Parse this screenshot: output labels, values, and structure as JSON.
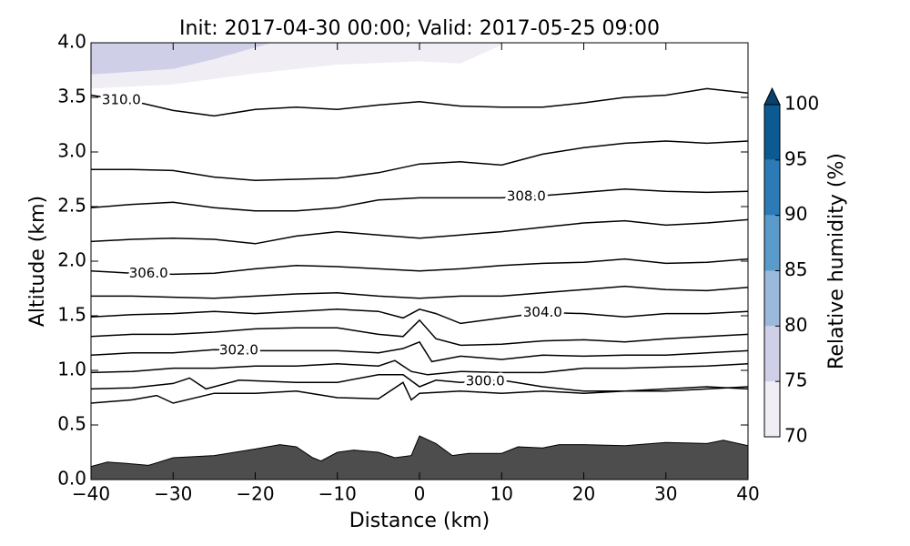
{
  "chart_data": {
    "type": "contour",
    "title": "Init: 2017-04-30 00:00; Valid: 2017-05-25 09:00",
    "xlabel": "Distance (km)",
    "ylabel": "Altitude (km)",
    "xlim": [
      -40,
      40
    ],
    "ylim": [
      0,
      4
    ],
    "xticks": [
      {
        "value": -40,
        "label": "−40"
      },
      {
        "value": -30,
        "label": "−30"
      },
      {
        "value": -20,
        "label": "−20"
      },
      {
        "value": -10,
        "label": "−10"
      },
      0,
      10,
      20,
      30,
      40
    ],
    "yticks": [
      {
        "value": 0,
        "label": "0.0"
      },
      0.5,
      {
        "value": 1,
        "label": "1.0"
      },
      1.5,
      {
        "value": 2,
        "label": "2.0"
      },
      2.5,
      {
        "value": 3,
        "label": "3.0"
      },
      3.5,
      {
        "value": 4,
        "label": "4.0"
      }
    ],
    "contour_color": "#000000",
    "contours": [
      {
        "level": 299,
        "x": [
          -40,
          -35,
          -32,
          -30,
          -25,
          -20,
          -15,
          -10,
          -5,
          -2,
          -1,
          0,
          5,
          10,
          15,
          20,
          25,
          30,
          35,
          40
        ],
        "y": [
          0.7,
          0.73,
          0.77,
          0.7,
          0.79,
          0.79,
          0.81,
          0.75,
          0.74,
          0.89,
          0.73,
          0.79,
          0.81,
          0.79,
          0.81,
          0.79,
          0.81,
          0.81,
          0.83,
          0.85
        ]
      },
      {
        "level": 300,
        "label": "300.0",
        "x": [
          -40,
          -35,
          -30,
          -28,
          -26,
          -22,
          -15,
          -10,
          -5,
          -2,
          0,
          2,
          5,
          10,
          15,
          20,
          25,
          30,
          35,
          40
        ],
        "y": [
          0.83,
          0.84,
          0.88,
          0.93,
          0.83,
          0.91,
          0.89,
          0.89,
          0.96,
          0.96,
          0.85,
          0.91,
          0.89,
          0.91,
          0.85,
          0.81,
          0.81,
          0.83,
          0.85,
          0.83
        ]
      },
      {
        "level": 301,
        "x": [
          -40,
          -35,
          -30,
          -25,
          -20,
          -15,
          -10,
          -5,
          -3,
          -1,
          1,
          5,
          10,
          15,
          20,
          25,
          30,
          35,
          40
        ],
        "y": [
          0.98,
          0.99,
          1.02,
          1.02,
          1.04,
          1.04,
          1.06,
          1.04,
          1.09,
          0.99,
          0.96,
          0.99,
          0.98,
          0.98,
          1.02,
          1.02,
          1.03,
          1.04,
          1.06
        ]
      },
      {
        "level": 302,
        "label": "302.0",
        "x": [
          -40,
          -35,
          -30,
          -25,
          -20,
          -15,
          -10,
          -5,
          -2,
          0,
          1.5,
          5,
          10,
          15,
          20,
          25,
          30,
          35,
          40
        ],
        "y": [
          1.14,
          1.16,
          1.16,
          1.19,
          1.18,
          1.18,
          1.18,
          1.16,
          1.2,
          1.26,
          1.08,
          1.13,
          1.1,
          1.14,
          1.13,
          1.14,
          1.14,
          1.16,
          1.18
        ]
      },
      {
        "level": 303,
        "x": [
          -40,
          -35,
          -30,
          -25,
          -20,
          -15,
          -10,
          -5,
          -2,
          0,
          2,
          5,
          10,
          15,
          20,
          25,
          30,
          35,
          40
        ],
        "y": [
          1.31,
          1.33,
          1.33,
          1.35,
          1.38,
          1.39,
          1.39,
          1.33,
          1.31,
          1.46,
          1.29,
          1.23,
          1.24,
          1.27,
          1.28,
          1.26,
          1.29,
          1.31,
          1.33
        ]
      },
      {
        "level": 304,
        "label": "304.0",
        "x": [
          -40,
          -35,
          -30,
          -25,
          -20,
          -15,
          -10,
          -5,
          -2,
          0,
          2,
          5,
          10,
          15,
          20,
          25,
          30,
          35,
          40
        ],
        "y": [
          1.49,
          1.51,
          1.52,
          1.54,
          1.52,
          1.54,
          1.56,
          1.54,
          1.48,
          1.56,
          1.52,
          1.43,
          1.48,
          1.53,
          1.52,
          1.49,
          1.52,
          1.52,
          1.54
        ]
      },
      {
        "level": 305,
        "x": [
          -40,
          -35,
          -30,
          -25,
          -20,
          -15,
          -10,
          -5,
          0,
          5,
          10,
          15,
          20,
          25,
          30,
          35,
          40
        ],
        "y": [
          1.68,
          1.68,
          1.67,
          1.66,
          1.68,
          1.7,
          1.71,
          1.68,
          1.66,
          1.68,
          1.68,
          1.71,
          1.74,
          1.77,
          1.74,
          1.73,
          1.76
        ]
      },
      {
        "level": 306,
        "label": "306.0",
        "x": [
          -40,
          -35,
          -30,
          -25,
          -20,
          -15,
          -10,
          -5,
          0,
          5,
          10,
          15,
          20,
          25,
          30,
          35,
          40
        ],
        "y": [
          1.91,
          1.89,
          1.88,
          1.89,
          1.93,
          1.96,
          1.95,
          1.93,
          1.91,
          1.93,
          1.96,
          1.98,
          1.99,
          2.02,
          1.98,
          1.99,
          2.02
        ]
      },
      {
        "level": 307,
        "x": [
          -40,
          -35,
          -30,
          -25,
          -20,
          -15,
          -10,
          -5,
          0,
          5,
          10,
          15,
          20,
          25,
          30,
          35,
          40
        ],
        "y": [
          2.18,
          2.2,
          2.21,
          2.2,
          2.16,
          2.23,
          2.27,
          2.24,
          2.21,
          2.24,
          2.27,
          2.31,
          2.35,
          2.37,
          2.33,
          2.35,
          2.38
        ]
      },
      {
        "level": 308,
        "label": "308.0",
        "x": [
          -40,
          -35,
          -30,
          -25,
          -20,
          -15,
          -10,
          -5,
          0,
          5,
          10,
          15,
          20,
          25,
          30,
          35,
          40
        ],
        "y": [
          2.49,
          2.52,
          2.54,
          2.49,
          2.46,
          2.46,
          2.49,
          2.56,
          2.58,
          2.58,
          2.58,
          2.6,
          2.63,
          2.66,
          2.64,
          2.63,
          2.64
        ]
      },
      {
        "level": 309,
        "x": [
          -40,
          -35,
          -30,
          -25,
          -20,
          -15,
          -10,
          -5,
          0,
          5,
          10,
          15,
          20,
          25,
          30,
          35,
          40
        ],
        "y": [
          2.84,
          2.84,
          2.83,
          2.77,
          2.74,
          2.75,
          2.76,
          2.81,
          2.89,
          2.91,
          2.88,
          2.98,
          3.04,
          3.08,
          3.1,
          3.08,
          3.1
        ]
      },
      {
        "level": 310,
        "label": "310.0",
        "x": [
          -40,
          -34,
          -30,
          -25,
          -20,
          -15,
          -10,
          -5,
          0,
          5,
          10,
          15,
          20,
          25,
          30,
          35,
          40
        ],
        "y": [
          3.52,
          3.45,
          3.38,
          3.33,
          3.39,
          3.41,
          3.39,
          3.43,
          3.46,
          3.42,
          3.41,
          3.41,
          3.45,
          3.5,
          3.52,
          3.58,
          3.54
        ]
      }
    ],
    "terrain": {
      "color": "#4d4d4d",
      "x": [
        -40,
        -38,
        -36,
        -33,
        -30,
        -25,
        -20,
        -17,
        -15,
        -13,
        -12,
        -10,
        -8,
        -5,
        -3,
        -1,
        0,
        2,
        4,
        6,
        10,
        12,
        15,
        17,
        20,
        25,
        30,
        35,
        37,
        40
      ],
      "y": [
        0.12,
        0.16,
        0.15,
        0.13,
        0.2,
        0.22,
        0.28,
        0.32,
        0.3,
        0.2,
        0.17,
        0.25,
        0.27,
        0.25,
        0.2,
        0.22,
        0.4,
        0.33,
        0.22,
        0.24,
        0.24,
        0.3,
        0.29,
        0.32,
        0.32,
        0.31,
        0.34,
        0.33,
        0.36,
        0.31
      ]
    },
    "humidity_regions": [
      {
        "bin": 0,
        "x": [
          -40,
          -40,
          -30,
          -20,
          -10,
          0,
          5,
          10,
          10
        ],
        "y": [
          4.0,
          3.58,
          3.62,
          3.72,
          3.8,
          3.83,
          3.81,
          3.98,
          4.0
        ]
      },
      {
        "bin": 1,
        "x": [
          -40,
          -40,
          -30,
          -25,
          -18
        ],
        "y": [
          4.0,
          3.71,
          3.76,
          3.85,
          4.0
        ]
      }
    ],
    "colorbar": {
      "label": "Relative humidity (%)",
      "levels": [
        70,
        75,
        80,
        85,
        90,
        95,
        100
      ],
      "colors": [
        "#f0edf5",
        "#cfd0e8",
        "#9bb9da",
        "#5b9bcc",
        "#2c7bb6",
        "#0c5a92"
      ],
      "extend_color": "#08406e"
    }
  }
}
